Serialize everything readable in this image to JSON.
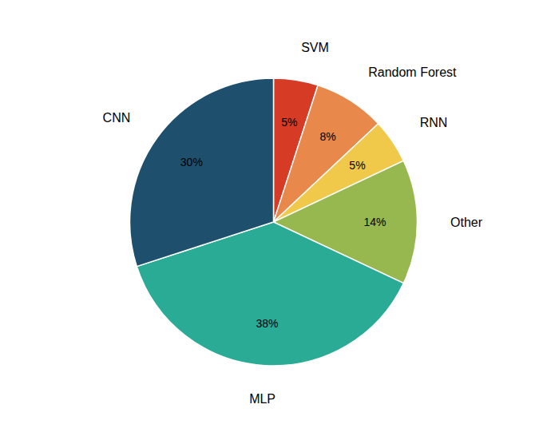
{
  "chart_data": {
    "type": "pie",
    "categories": [
      "SVM",
      "Random Forest",
      "RNN",
      "Other",
      "MLP",
      "CNN"
    ],
    "values": [
      5,
      8,
      5,
      14,
      38,
      30
    ],
    "value_labels": [
      "5%",
      "8%",
      "5%",
      "14%",
      "38%",
      "30%"
    ],
    "colors": [
      "#d63b25",
      "#e8884a",
      "#f0c84a",
      "#97b84e",
      "#2aab96",
      "#1e506e"
    ],
    "data_labels": true
  }
}
